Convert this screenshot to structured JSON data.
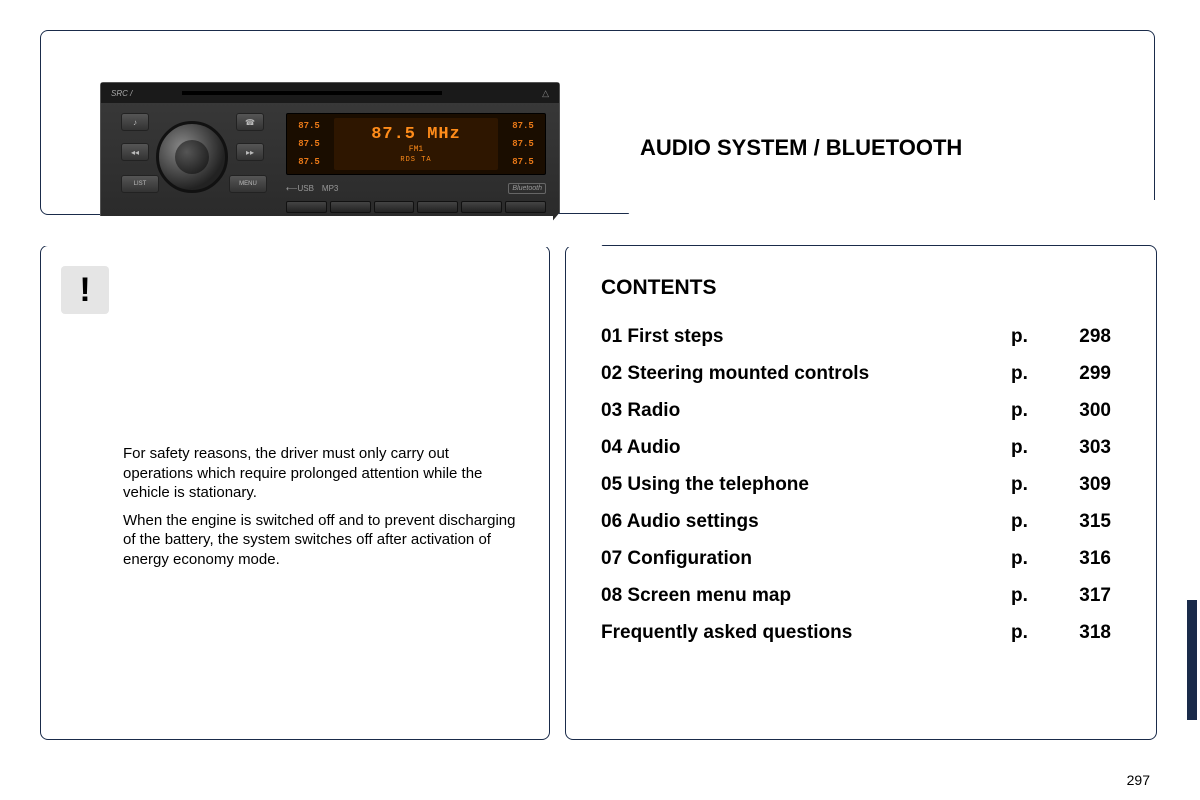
{
  "colors": {
    "border": "#1a2b4a",
    "background": "#ffffff",
    "text": "#000000",
    "lcd_bg": "#1a0d00",
    "lcd_text": "#ff8c1a",
    "radio_body": "#2a2a2a"
  },
  "radio": {
    "src_label": "SRC /",
    "eject_symbol": "△",
    "presets_left": [
      "87.5",
      "87.5",
      "87.5"
    ],
    "presets_right": [
      "87.5",
      "87.5",
      "87.5"
    ],
    "frequency": "87.5 MHz",
    "band": "FM1",
    "rds": "RDS TA",
    "bottom_usb": "⟵USB",
    "bottom_mp3": "MP3",
    "bottom_bt": "Bluetooth",
    "btn_list": "LIST",
    "btn_menu": "MENU",
    "btn_note": "♪",
    "btn_phone": "☎",
    "btn_prev": "◂◂",
    "btn_next": "▸▸"
  },
  "title": "AUDIO SYSTEM / BLUETOOTH",
  "warning": {
    "icon": "!",
    "p1": "For safety reasons, the driver must only carry out operations which require prolonged attention while the vehicle is stationary.",
    "p2": "When the engine is switched off and to prevent discharging of the battery, the system switches off after activation of energy economy mode."
  },
  "contents": {
    "heading": "CONTENTS",
    "rows": [
      {
        "label": "01 First steps",
        "p": "p.",
        "page": "298"
      },
      {
        "label": "02 Steering mounted controls",
        "p": "p.",
        "page": "299"
      },
      {
        "label": "03 Radio",
        "p": "p.",
        "page": "300"
      },
      {
        "label": "04 Audio",
        "p": "p.",
        "page": "303"
      },
      {
        "label": "05 Using the telephone",
        "p": "p.",
        "page": "309"
      },
      {
        "label": "06 Audio settings",
        "p": "p.",
        "page": "315"
      },
      {
        "label": "07 Configuration",
        "p": "p.",
        "page": "316"
      },
      {
        "label": "08 Screen menu map",
        "p": "p.",
        "page": "317"
      },
      {
        "label": "Frequently asked questions",
        "p": "p.",
        "page": "318"
      }
    ]
  },
  "page_number": "297"
}
